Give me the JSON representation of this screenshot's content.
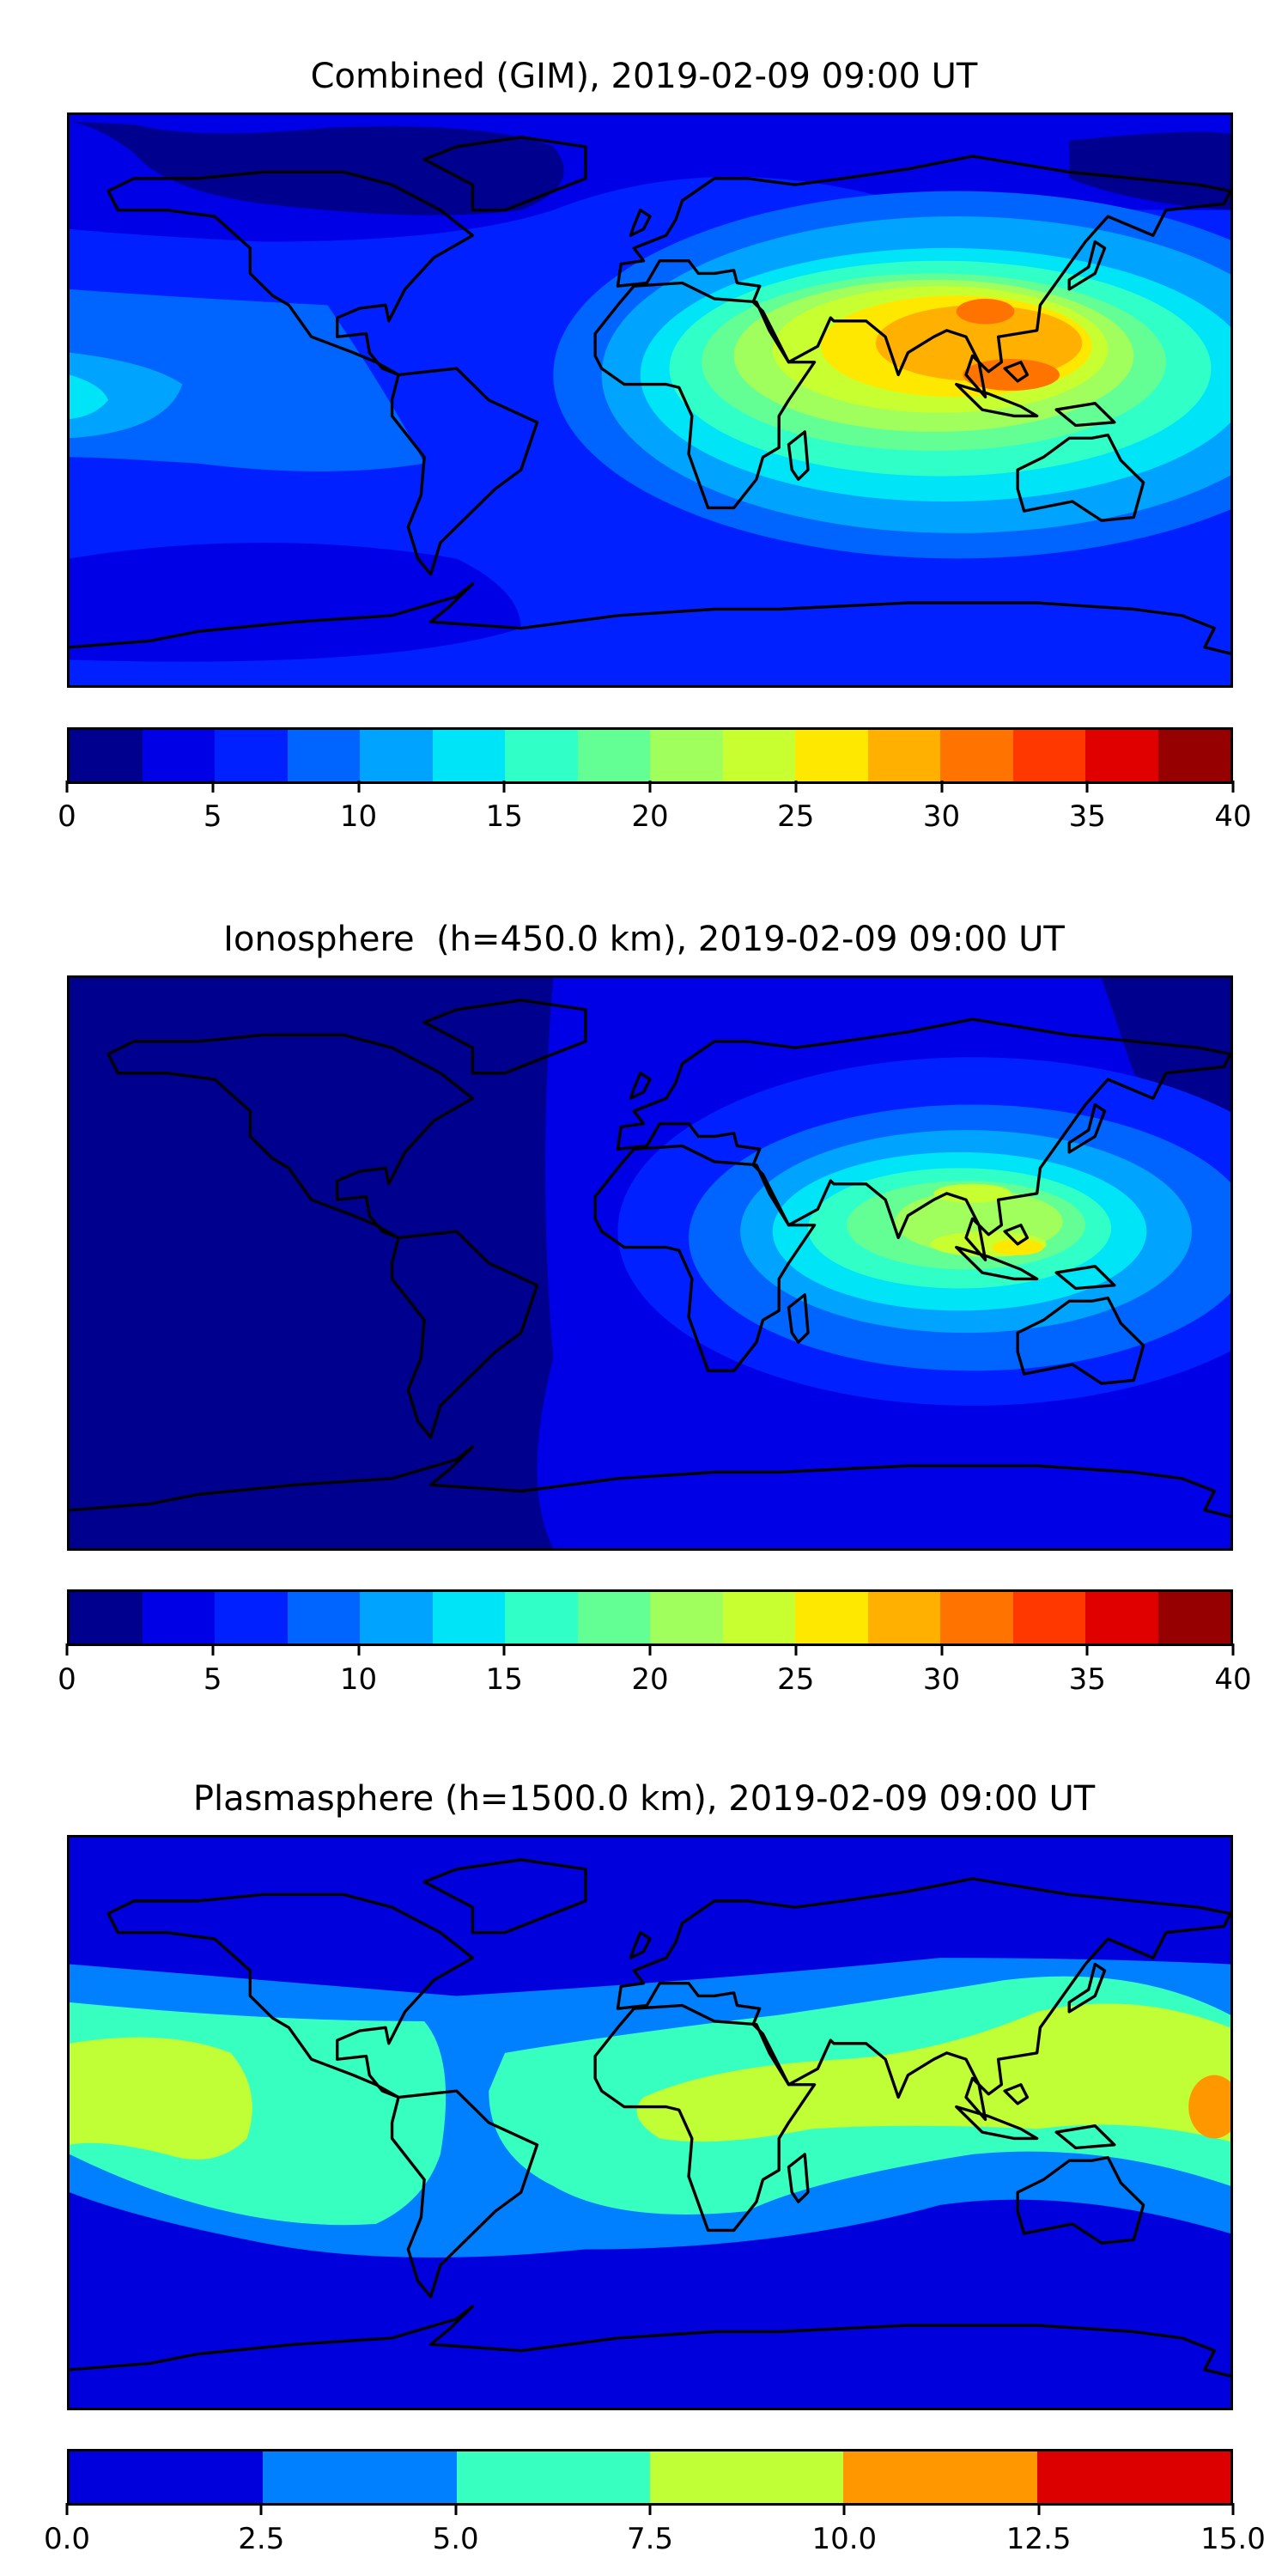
{
  "chart_data": [
    {
      "type": "heatmap",
      "title": "Combined (GIM), 2019-02-09 09:00 UT",
      "levels": [
        0,
        2.5,
        5,
        7.5,
        10,
        12.5,
        15,
        17.5,
        20,
        22.5,
        25,
        27.5,
        30,
        32.5,
        35,
        37.5,
        40
      ],
      "colors": [
        "#00008f",
        "#0000e6",
        "#0020ff",
        "#0064ff",
        "#00a4ff",
        "#00e4f8",
        "#30ffc8",
        "#64ff94",
        "#a0ff5c",
        "#c8ff30",
        "#ffe800",
        "#ffb000",
        "#ff7400",
        "#ff3800",
        "#e00000",
        "#960000"
      ],
      "colorbar_ticks": [
        "0",
        "5",
        "10",
        "15",
        "20",
        "25",
        "30",
        "35",
        "40"
      ],
      "colorbar_tick_values": [
        0,
        5,
        10,
        15,
        20,
        25,
        30,
        35,
        40
      ],
      "range": [
        0,
        40
      ],
      "peak_region": "Southeast Asia / Indian Ocean, ~30-35"
    },
    {
      "type": "heatmap",
      "title": "Ionosphere  (h=450.0 km), 2019-02-09 09:00 UT",
      "levels": [
        0,
        2.5,
        5,
        7.5,
        10,
        12.5,
        15,
        17.5,
        20,
        22.5,
        25,
        27.5,
        30,
        32.5,
        35,
        37.5,
        40
      ],
      "colors": [
        "#00008f",
        "#0000e6",
        "#0020ff",
        "#0064ff",
        "#00a4ff",
        "#00e4f8",
        "#30ffc8",
        "#64ff94",
        "#a0ff5c",
        "#c8ff30",
        "#ffe800",
        "#ffb000",
        "#ff7400",
        "#ff3800",
        "#e00000",
        "#960000"
      ],
      "colorbar_ticks": [
        "0",
        "5",
        "10",
        "15",
        "20",
        "25",
        "30",
        "35",
        "40"
      ],
      "colorbar_tick_values": [
        0,
        5,
        10,
        15,
        20,
        25,
        30,
        35,
        40
      ],
      "range": [
        0,
        40
      ],
      "peak_region": "Southeast Asia, ~25"
    },
    {
      "type": "heatmap",
      "title": "Plasmasphere (h=1500.0 km), 2019-02-09 09:00 UT",
      "levels": [
        0,
        2.5,
        5,
        7.5,
        10,
        12.5,
        15
      ],
      "colors": [
        "#0000dd",
        "#0080ff",
        "#36ffc0",
        "#c0ff36",
        "#ff9800",
        "#dd0000"
      ],
      "colorbar_ticks": [
        "0.0",
        "2.5",
        "5.0",
        "7.5",
        "10.0",
        "12.5",
        "15.0"
      ],
      "colorbar_tick_values": [
        0,
        2.5,
        5,
        7.5,
        10,
        12.5,
        15
      ],
      "range": [
        0,
        15
      ],
      "peak_region": "Western Pacific, ~10-12.5"
    }
  ]
}
